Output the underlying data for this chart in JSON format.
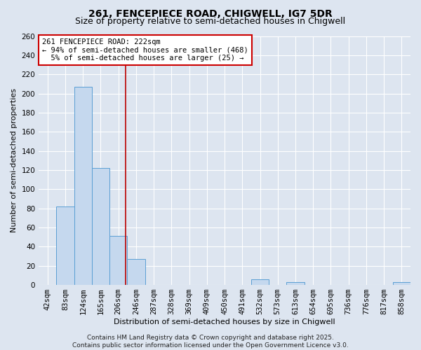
{
  "title1": "261, FENCEPIECE ROAD, CHIGWELL, IG7 5DR",
  "title2": "Size of property relative to semi-detached houses in Chigwell",
  "xlabel": "Distribution of semi-detached houses by size in Chigwell",
  "ylabel": "Number of semi-detached properties",
  "bin_labels": [
    "42sqm",
    "83sqm",
    "124sqm",
    "165sqm",
    "206sqm",
    "246sqm",
    "287sqm",
    "328sqm",
    "369sqm",
    "409sqm",
    "450sqm",
    "491sqm",
    "532sqm",
    "573sqm",
    "613sqm",
    "654sqm",
    "695sqm",
    "736sqm",
    "776sqm",
    "817sqm",
    "858sqm"
  ],
  "bar_values": [
    0,
    82,
    207,
    122,
    51,
    27,
    0,
    0,
    0,
    0,
    0,
    0,
    6,
    0,
    3,
    0,
    0,
    0,
    0,
    0,
    3
  ],
  "bar_color": "#c5d8ee",
  "bar_edge_color": "#5a9fd4",
  "red_line_x": 4.39,
  "red_line_color": "#bb0000",
  "annotation_text": "261 FENCEPIECE ROAD: 222sqm\n← 94% of semi-detached houses are smaller (468)\n  5% of semi-detached houses are larger (25) →",
  "annotation_box_color": "#ffffff",
  "annotation_box_edge": "#cc0000",
  "ylim": [
    0,
    260
  ],
  "yticks": [
    0,
    20,
    40,
    60,
    80,
    100,
    120,
    140,
    160,
    180,
    200,
    220,
    240,
    260
  ],
  "background_color": "#dde5f0",
  "grid_color": "#ffffff",
  "footer_text": "Contains HM Land Registry data © Crown copyright and database right 2025.\nContains public sector information licensed under the Open Government Licence v3.0.",
  "title1_fontsize": 10,
  "title2_fontsize": 9,
  "xlabel_fontsize": 8,
  "ylabel_fontsize": 8,
  "tick_fontsize": 7.5,
  "annotation_fontsize": 7.5,
  "footer_fontsize": 6.5
}
